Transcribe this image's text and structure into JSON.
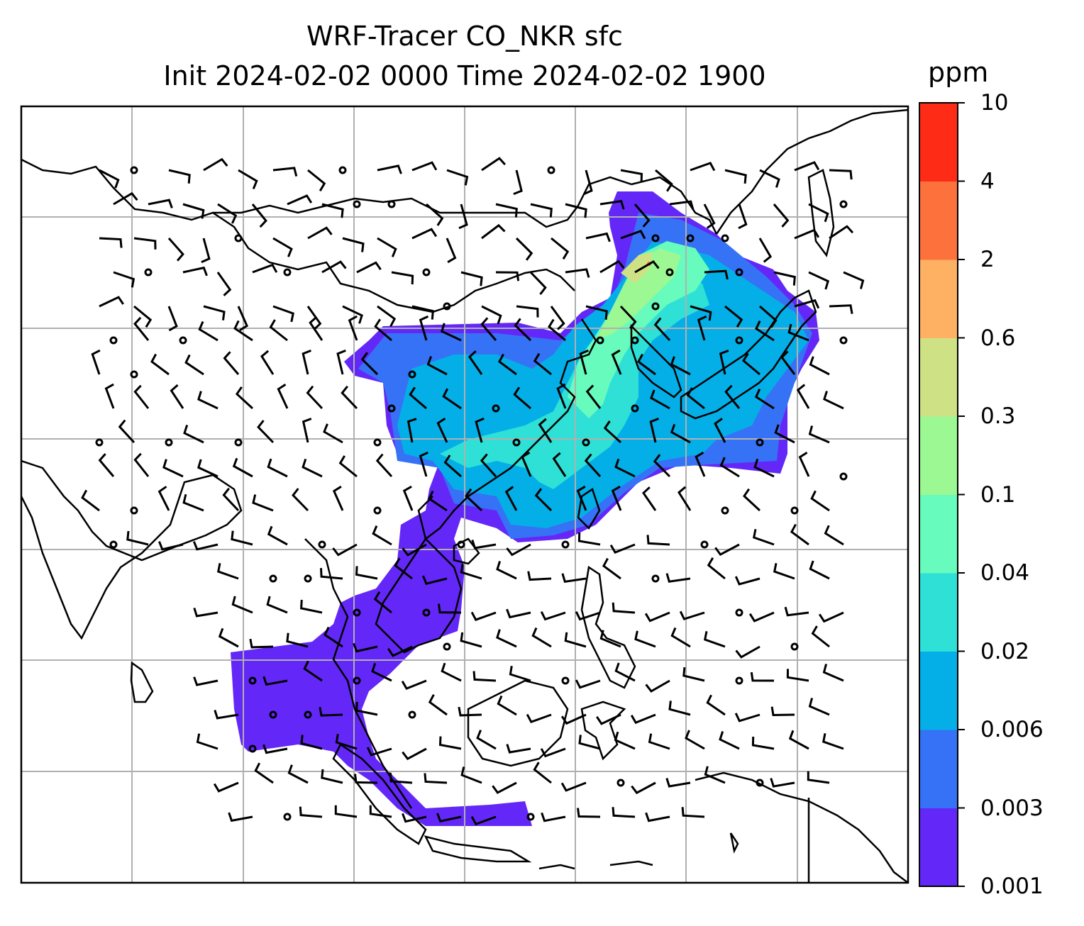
{
  "title": {
    "line1": "WRF-Tracer CO_NKR sfc",
    "line2": "Init 2024-02-02 0000 Time 2024-02-02 1900"
  },
  "colorbar": {
    "unit": "ppm",
    "levels": [
      "0.001",
      "0.003",
      "0.006",
      "0.02",
      "0.04",
      "0.1",
      "0.3",
      "0.6",
      "2",
      "4",
      "10"
    ],
    "colors": [
      "#6328f7",
      "#3672f5",
      "#04afe7",
      "#2ee0d5",
      "#67fbbd",
      "#9cf893",
      "#cee185",
      "#feb163",
      "#fd723c",
      "#fe2c16"
    ]
  },
  "map": {
    "region": "East and Southeast Asia",
    "field": "CO_NKR surface tracer concentration",
    "overlay": "wind barbs",
    "gridlines": true
  }
}
